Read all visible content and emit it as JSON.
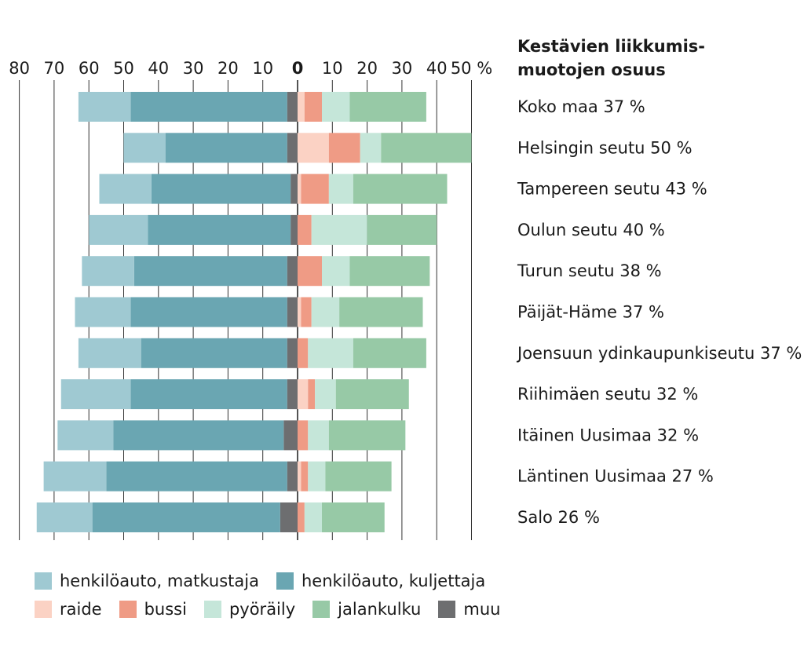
{
  "header": {
    "line1": "Kestävien liikkumis-",
    "line2": "muotojen osuus"
  },
  "colors": {
    "henkiloauto_matkustaja": "#9fc9d2",
    "henkiloauto_kuljettaja": "#6aa6b2",
    "muu": "#6d6e70",
    "raide": "#fbd2c4",
    "bussi": "#ef9b85",
    "pyoraily": "#c5e6d9",
    "jalankulku": "#97c9a6"
  },
  "legend": [
    {
      "key": "henkiloauto_matkustaja",
      "label": "henkilöauto, matkustaja"
    },
    {
      "key": "henkiloauto_kuljettaja",
      "label": "henkilöauto, kuljettaja"
    },
    {
      "key": "raide",
      "label": "raide"
    },
    {
      "key": "bussi",
      "label": "bussi"
    },
    {
      "key": "pyoraily",
      "label": "pyöräily"
    },
    {
      "key": "jalankulku",
      "label": "jalankulku"
    },
    {
      "key": "muu",
      "label": "muu"
    }
  ],
  "chart_data": {
    "type": "bar",
    "orientation": "horizontal-diverging",
    "x_ticks_left": [
      "80",
      "70",
      "60",
      "50",
      "40",
      "30",
      "20",
      "10"
    ],
    "x_tick_zero": "0",
    "x_ticks_right": [
      "10",
      "20",
      "30",
      "40",
      "50 %"
    ],
    "xlim": [
      -80,
      50
    ],
    "grid": true,
    "categories": [
      "Koko maa 37 %",
      "Helsingin seutu 50 %",
      "Tampereen seutu 43 %",
      "Oulun seutu 40 %",
      "Turun seutu 38 %",
      "Päijät-Häme 37 %",
      "Joensuun ydinkaupunkiseutu 37 %",
      "Riihimäen seutu 32 %",
      "Itäinen Uusimaa 32 %",
      "Läntinen Uusimaa 27 %",
      "Salo 26 %"
    ],
    "series_left": [
      {
        "key": "muu",
        "values": [
          3,
          3,
          2,
          2,
          3,
          3,
          3,
          3,
          4,
          3,
          5
        ]
      },
      {
        "key": "henkiloauto_kuljettaja",
        "values": [
          45,
          35,
          40,
          41,
          44,
          45,
          42,
          45,
          49,
          52,
          54
        ]
      },
      {
        "key": "henkiloauto_matkustaja",
        "values": [
          15,
          12,
          15,
          17,
          15,
          16,
          18,
          20,
          16,
          18,
          16
        ]
      }
    ],
    "series_right": [
      {
        "key": "raide",
        "values": [
          2,
          9,
          1,
          0,
          0,
          1,
          0,
          3,
          0,
          1,
          0
        ]
      },
      {
        "key": "bussi",
        "values": [
          5,
          9,
          8,
          4,
          7,
          3,
          3,
          2,
          3,
          2,
          2
        ]
      },
      {
        "key": "pyoraily",
        "values": [
          8,
          6,
          7,
          16,
          8,
          8,
          13,
          6,
          6,
          5,
          5
        ]
      },
      {
        "key": "jalankulku",
        "values": [
          22,
          26,
          27,
          20,
          23,
          24,
          21,
          21,
          22,
          19,
          18
        ]
      }
    ]
  }
}
